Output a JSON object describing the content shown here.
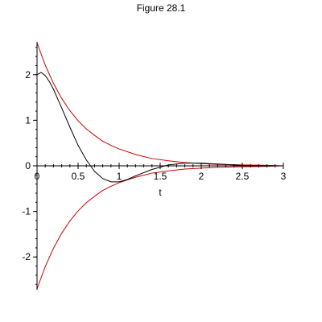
{
  "chart_data": {
    "type": "line",
    "title": "Figure 28.1",
    "xlabel": "t",
    "ylabel": "",
    "xlim": [
      0,
      3
    ],
    "ylim": [
      -2.72,
      2.72
    ],
    "x_ticks": [
      {
        "value": 0,
        "label": "0"
      },
      {
        "value": 0.5,
        "label": "0.5"
      },
      {
        "value": 1,
        "label": "1"
      },
      {
        "value": 1.5,
        "label": "1.5"
      },
      {
        "value": 2,
        "label": "2"
      },
      {
        "value": 2.5,
        "label": "2.5"
      },
      {
        "value": 3,
        "label": "3"
      }
    ],
    "y_ticks": [
      {
        "value": -2,
        "label": "-2"
      },
      {
        "value": -1,
        "label": "-1"
      },
      {
        "value": 0,
        "label": "0"
      },
      {
        "value": 1,
        "label": "1"
      },
      {
        "value": 2,
        "label": "2"
      }
    ],
    "grid": false,
    "legend": "none",
    "series": [
      {
        "color": "#cc0000",
        "x": [
          0,
          0.1,
          0.2,
          0.3,
          0.4,
          0.5,
          0.6,
          0.7,
          0.8,
          0.9,
          1.0,
          1.2,
          1.4,
          1.6,
          1.8,
          2.0,
          2.2,
          2.5,
          2.8,
          3.0
        ],
        "y": [
          2.7,
          2.21,
          1.81,
          1.48,
          1.21,
          0.99,
          0.81,
          0.67,
          0.54,
          0.45,
          0.37,
          0.25,
          0.16,
          0.11,
          0.07,
          0.05,
          0.03,
          0.02,
          0.01,
          0.0
        ]
      },
      {
        "color": "#cc0000",
        "x": [
          0,
          0.1,
          0.2,
          0.3,
          0.4,
          0.5,
          0.6,
          0.7,
          0.8,
          0.9,
          1.0,
          1.2,
          1.4,
          1.6,
          1.8,
          2.0,
          2.2,
          2.5,
          2.8,
          3.0
        ],
        "y": [
          -2.7,
          -2.21,
          -1.81,
          -1.48,
          -1.21,
          -0.99,
          -0.81,
          -0.67,
          -0.54,
          -0.45,
          -0.37,
          -0.25,
          -0.16,
          -0.11,
          -0.07,
          -0.05,
          -0.03,
          -0.02,
          -0.01,
          0.0
        ]
      },
      {
        "color": "#000000",
        "x": [
          0,
          0.05,
          0.1,
          0.15,
          0.2,
          0.3,
          0.4,
          0.5,
          0.6,
          0.7,
          0.8,
          0.9,
          1.0,
          1.1,
          1.2,
          1.4,
          1.6,
          1.8,
          2.0,
          2.2,
          2.5,
          2.8,
          3.0
        ],
        "y": [
          2.0,
          2.05,
          1.98,
          1.85,
          1.68,
          1.27,
          0.85,
          0.45,
          0.13,
          -0.12,
          -0.28,
          -0.35,
          -0.35,
          -0.3,
          -0.22,
          -0.08,
          0.02,
          0.06,
          0.06,
          0.04,
          0.01,
          0.0,
          0.0
        ]
      }
    ]
  }
}
